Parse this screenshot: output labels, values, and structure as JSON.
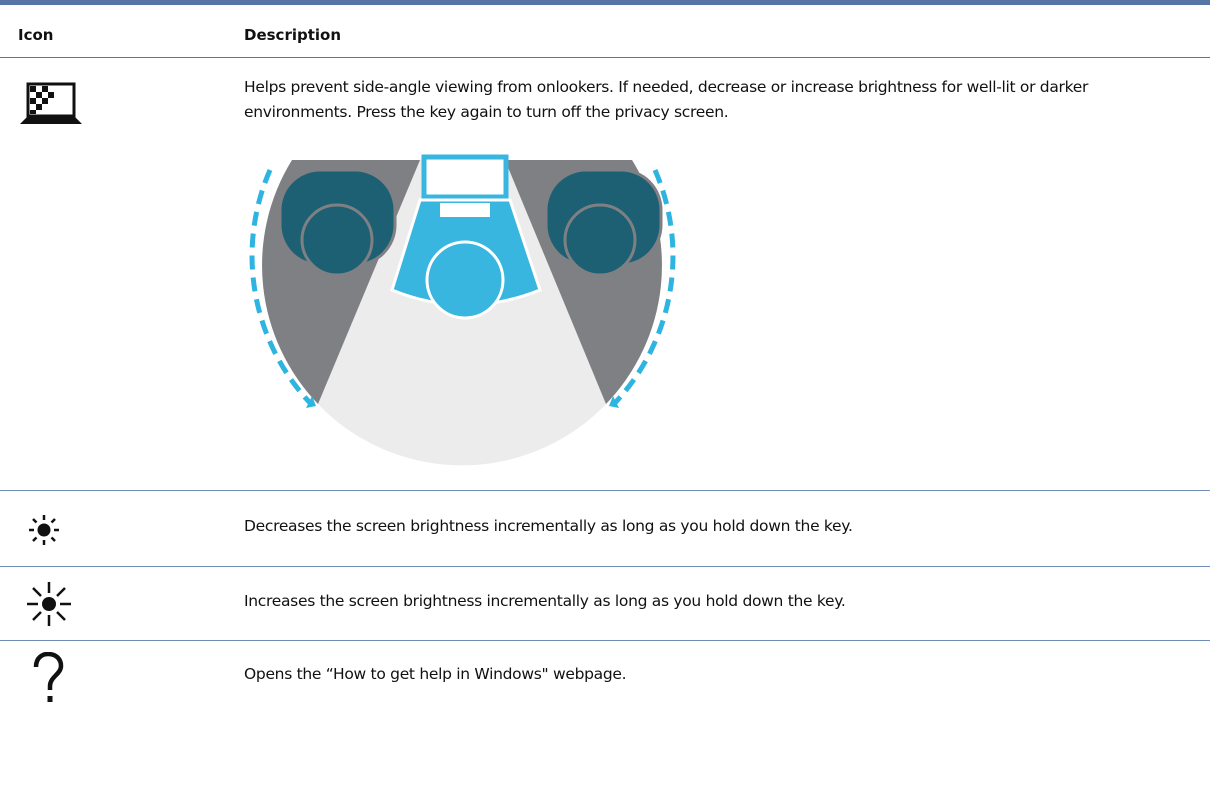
{
  "header": {
    "icon": "Icon",
    "description": "Description"
  },
  "rows": [
    {
      "description": "Helps prevent side-angle viewing from onlookers. If needed, decrease or increase brightness for well-lit or darker environments. Press the key again to turn off the privacy screen."
    },
    {
      "description": "Decreases the screen brightness incrementally as long as you hold down the key."
    },
    {
      "description": "Increases the screen brightness incrementally as long as you hold down the key."
    },
    {
      "description": "Opens the “How to get help in Windows\" webpage."
    }
  ]
}
